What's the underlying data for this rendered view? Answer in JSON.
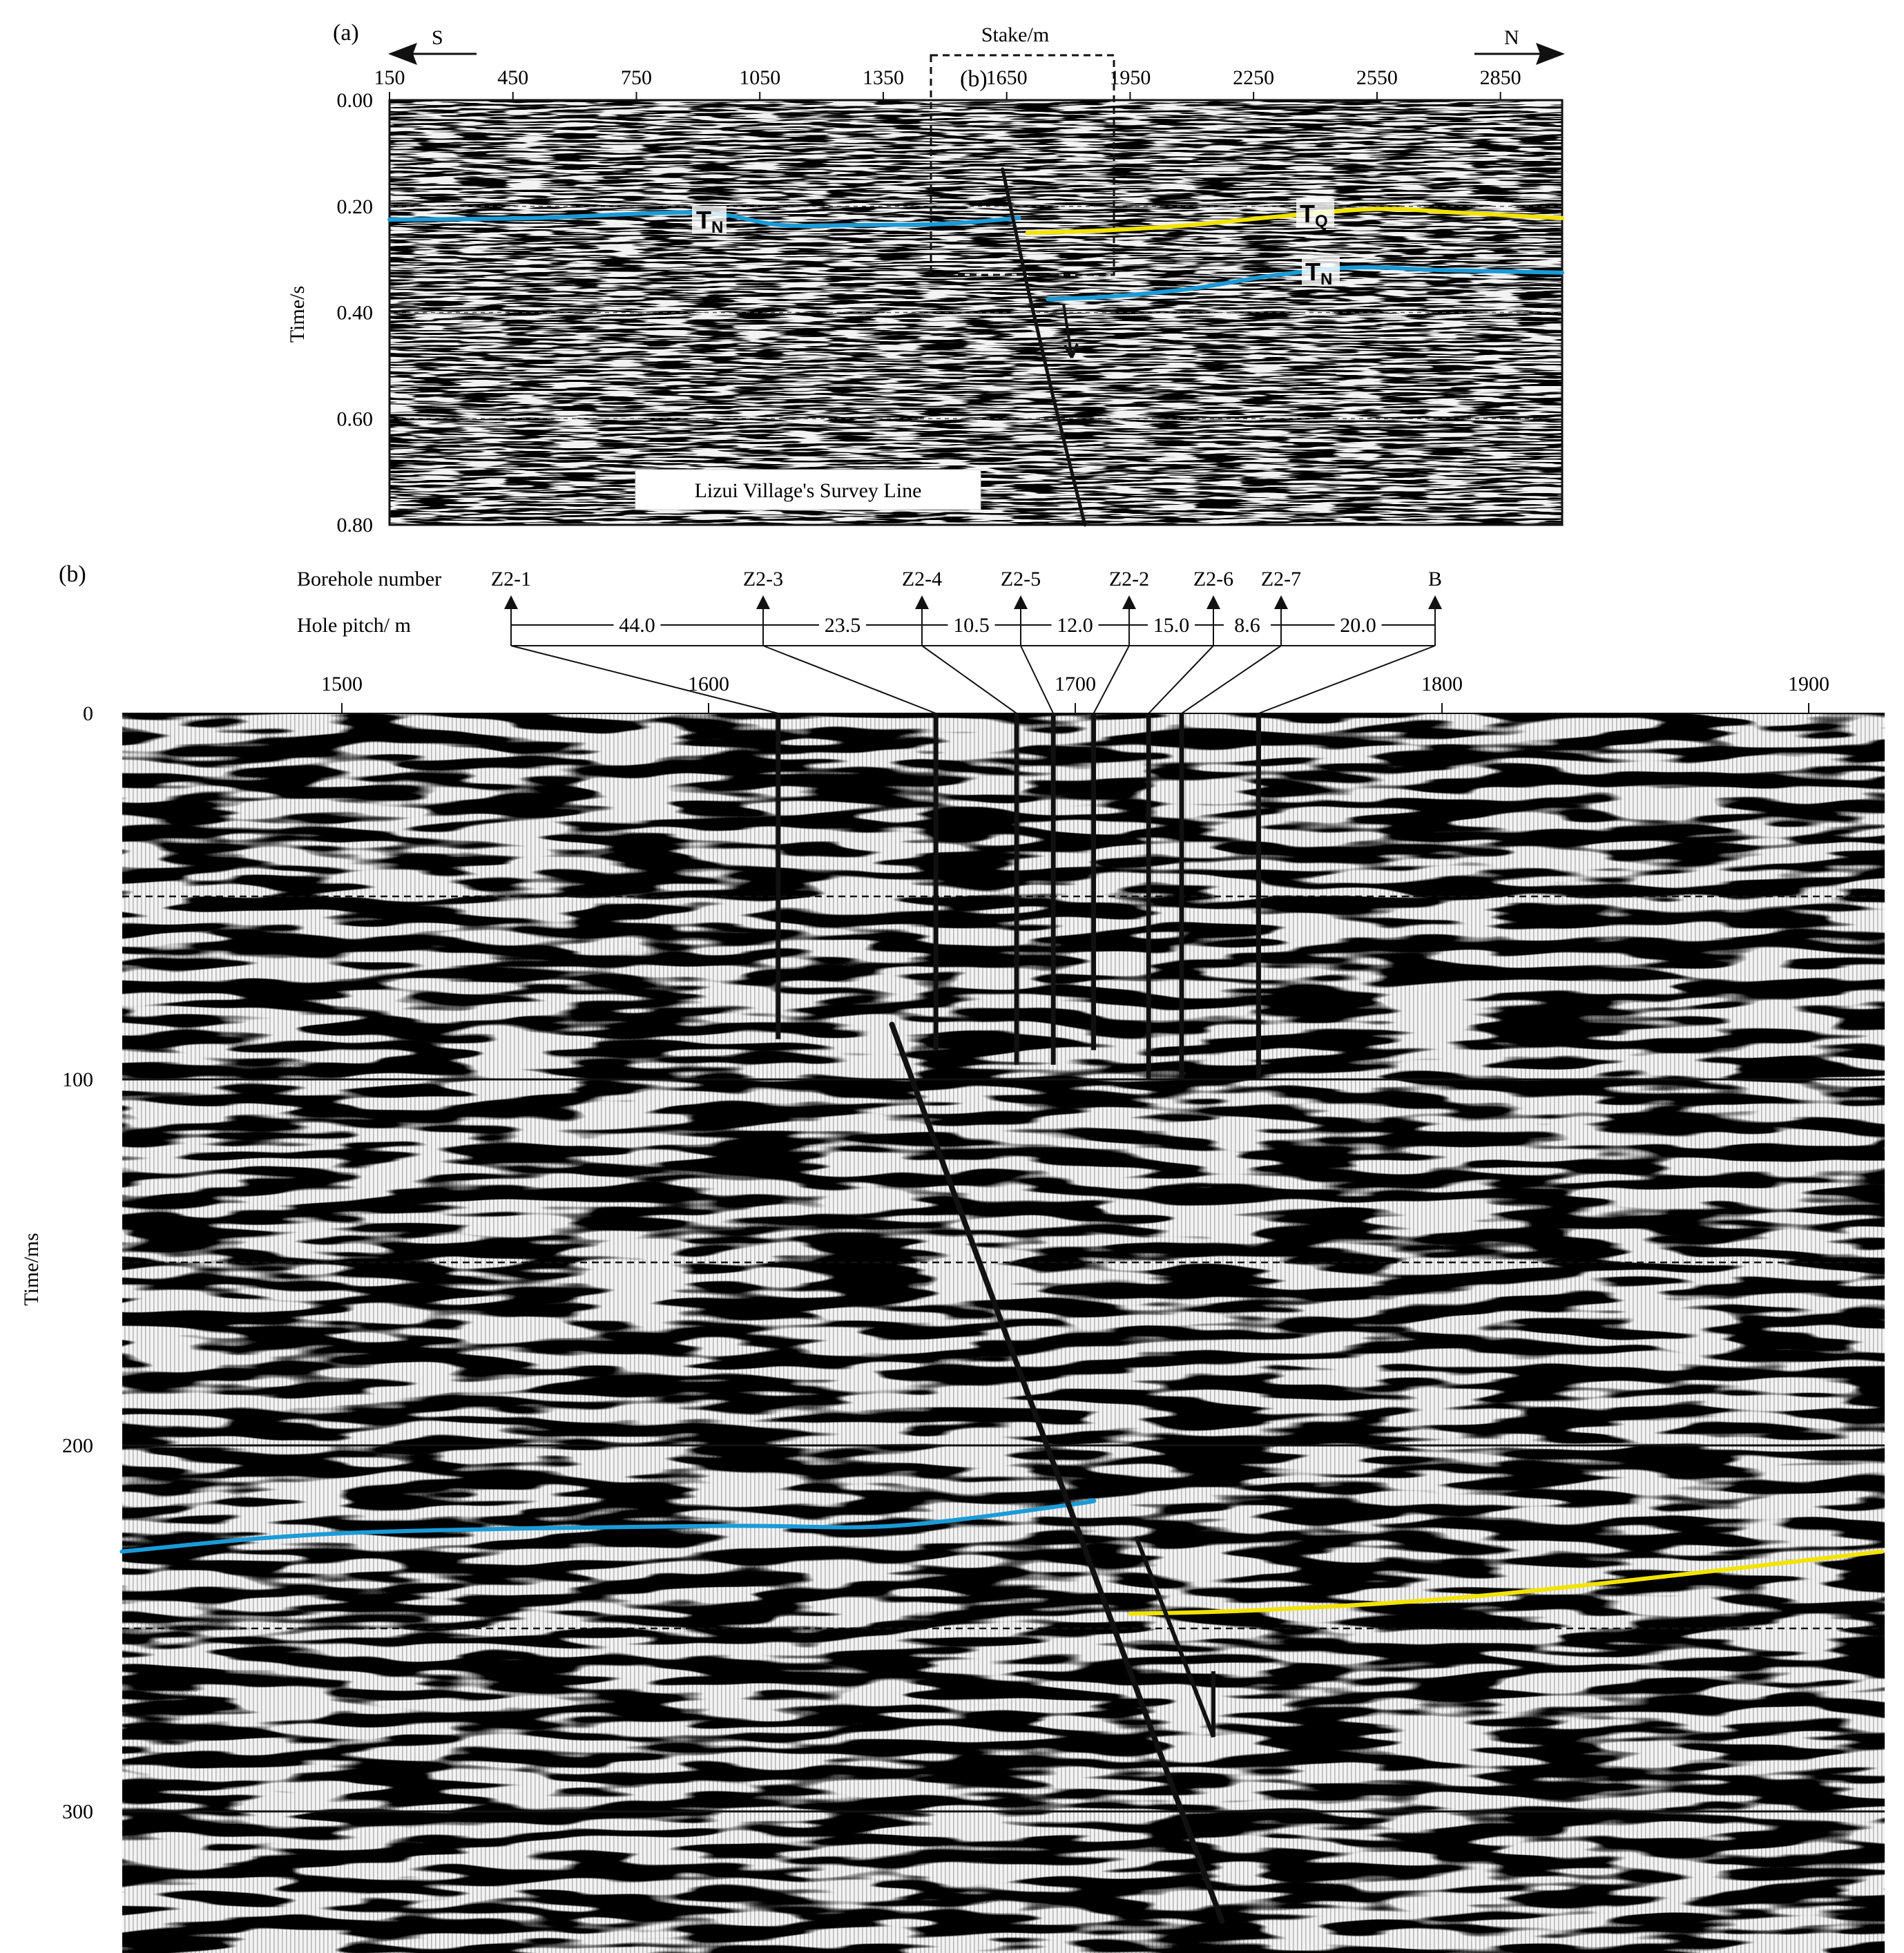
{
  "panel_a": {
    "label": "(a)",
    "dir_left": "S",
    "dir_right": "N",
    "x_axis_title": "Stake/m",
    "x_ticks": [
      "150",
      "450",
      "750",
      "1050",
      "1350",
      "1650",
      "1950",
      "2250",
      "2550",
      "2850"
    ],
    "y_axis_title": "Time/s",
    "y_ticks": [
      "0.00",
      "0.20",
      "0.40",
      "0.60",
      "0.80"
    ],
    "inset_label": "(b)",
    "survey_line_label": "Lizui Village's Survey Line",
    "horizon_labels": [
      {
        "main": "T",
        "sub": "N"
      },
      {
        "main": "T",
        "sub": "Q"
      },
      {
        "main": "T",
        "sub": "N"
      }
    ]
  },
  "panel_b": {
    "label": "(b)",
    "borehole_row_title": "Borehole number",
    "pitch_row_title": "Hole pitch/ m",
    "boreholes": [
      "Z2-1",
      "Z2-3",
      "Z2-4",
      "Z2-5",
      "Z2-2",
      "Z2-6",
      "Z2-7",
      "B"
    ],
    "pitches": [
      "44.0",
      "23.5",
      "10.5",
      "12.0",
      "15.0",
      "8.6",
      "20.0"
    ],
    "x_ticks": [
      "1500",
      "1600",
      "1700",
      "1800",
      "1900"
    ],
    "y_axis_title": "Time/ms",
    "y_ticks": [
      "0",
      "100",
      "200",
      "300"
    ]
  },
  "chart_data": [
    {
      "type": "line",
      "panel": "a",
      "description_source": "seismic time section, Lizui Village survey line",
      "xlabel": "Stake/m",
      "ylabel": "Time/s",
      "xlim": [
        150,
        3000
      ],
      "ylim": [
        0.8,
        0.0
      ],
      "series": [
        {
          "name": "TN",
          "color": "#1a9bd7",
          "x": [
            150,
            500,
            900,
            1100,
            1300,
            1500,
            1680
          ],
          "y": [
            0.225,
            0.222,
            0.212,
            0.235,
            0.235,
            0.233,
            0.222
          ]
        },
        {
          "name": "TQ",
          "color": "#f2e300",
          "x": [
            1700,
            1900,
            2100,
            2300,
            2550,
            2750,
            3000
          ],
          "y": [
            0.25,
            0.245,
            0.235,
            0.22,
            0.205,
            0.212,
            0.222
          ]
        },
        {
          "name": "TN",
          "color": "#1a9bd7",
          "x": [
            1750,
            1900,
            2100,
            2300,
            2500,
            2700,
            3000
          ],
          "y": [
            0.375,
            0.37,
            0.355,
            0.33,
            0.315,
            0.32,
            0.325
          ]
        },
        {
          "name": "fault",
          "color": "#111111",
          "x": [
            1640,
            1700,
            1760,
            1840
          ],
          "y": [
            0.13,
            0.35,
            0.55,
            0.8
          ]
        }
      ]
    },
    {
      "type": "line",
      "panel": "b",
      "xlabel": "",
      "ylabel": "Time/ms",
      "xlim": [
        1440,
        1920
      ],
      "ylim": [
        330,
        0
      ],
      "series": [
        {
          "name": "TN",
          "color": "#1a9bd7",
          "x": [
            1440,
            1500,
            1600,
            1650,
            1700,
            1704
          ],
          "y": [
            229,
            224,
            222,
            222,
            216,
            215
          ]
        },
        {
          "name": "TQ",
          "color": "#f2e300",
          "x": [
            1715,
            1750,
            1800,
            1850,
            1920
          ],
          "y": [
            246,
            245,
            242,
            237,
            229
          ]
        },
        {
          "name": "fault",
          "color": "#111111",
          "x": [
            1650,
            1740
          ],
          "y": [
            85,
            330
          ]
        }
      ],
      "boreholes_x": [
        1619,
        1662,
        1684,
        1694,
        1705,
        1720,
        1729,
        1750
      ],
      "boreholes_depth_ms": [
        89,
        92,
        96,
        96,
        92,
        100,
        100,
        100
      ]
    }
  ]
}
